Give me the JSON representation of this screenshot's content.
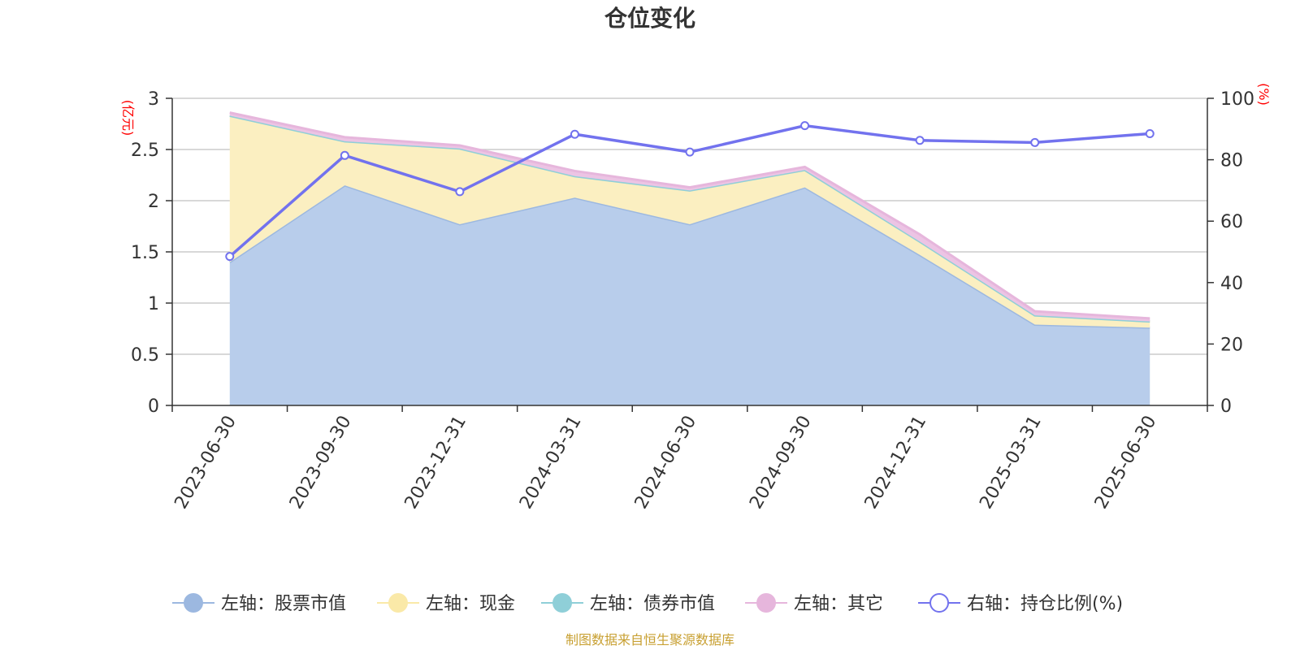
{
  "chart_data": {
    "type": "area",
    "title": "仓位变化",
    "categories": [
      "2023-06-30",
      "2023-09-30",
      "2023-12-31",
      "2024-03-31",
      "2024-06-30",
      "2024-09-30",
      "2024-12-31",
      "2025-03-31",
      "2025-06-30"
    ],
    "left_axis": {
      "unit": "(亿元)",
      "ylim": [
        0,
        3
      ],
      "ticks": [
        "0",
        "0.5",
        "1",
        "1.5",
        "2",
        "2.5",
        "3"
      ]
    },
    "right_axis": {
      "unit": "(%)",
      "ylim": [
        0,
        100
      ],
      "ticks": [
        "0",
        "20",
        "40",
        "60",
        "80",
        "100"
      ]
    },
    "stack": true,
    "grid": true,
    "series": [
      {
        "name": "左轴：股票市值",
        "axis": "left",
        "color": "#9cb8e0",
        "fill": "#b8cdeb",
        "values": [
          1.4,
          2.15,
          1.77,
          2.03,
          1.77,
          2.13,
          1.47,
          0.79,
          0.76
        ]
      },
      {
        "name": "左轴：现金",
        "axis": "left",
        "color": "#fae9a8",
        "fill": "#fbefc1",
        "values": [
          1.43,
          0.43,
          0.74,
          0.21,
          0.33,
          0.17,
          0.13,
          0.09,
          0.06
        ]
      },
      {
        "name": "左轴：债券市值",
        "axis": "left",
        "color": "#8fcfd8",
        "fill": "#8fcfd8",
        "values": [
          0,
          0,
          0,
          0,
          0,
          0,
          0,
          0,
          0
        ]
      },
      {
        "name": "左轴：其它",
        "axis": "left",
        "color": "#e6b6dc",
        "fill": "#ecc4e4",
        "values": [
          0.03,
          0.04,
          0.03,
          0.05,
          0.03,
          0.03,
          0.07,
          0.04,
          0.03
        ]
      },
      {
        "name": "右轴：持仓比例(%)",
        "axis": "right",
        "color": "#7272ee",
        "type": "line",
        "values": [
          48.5,
          81.4,
          69.6,
          88.3,
          82.5,
          91.1,
          86.3,
          85.6,
          88.5
        ]
      }
    ],
    "legend_position": "bottom",
    "source_note": "制图数据来自恒生聚源数据库"
  }
}
